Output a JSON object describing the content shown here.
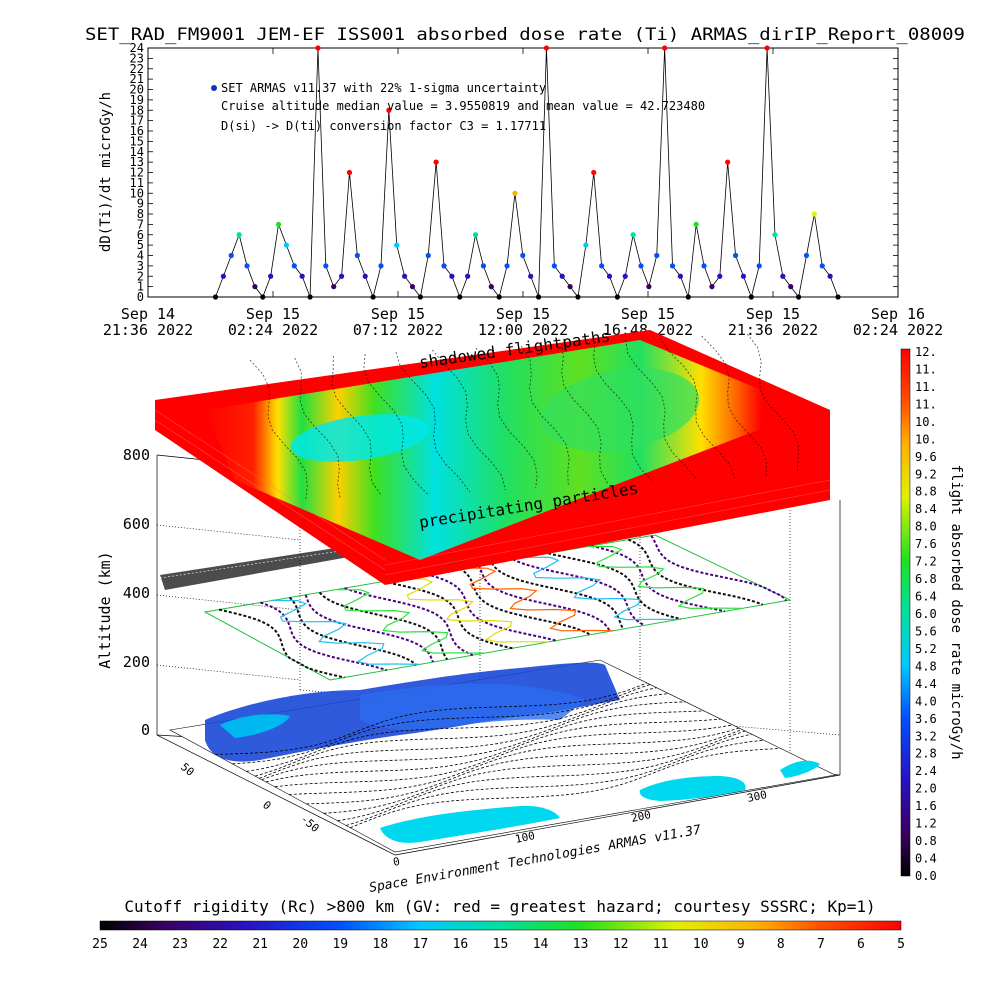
{
  "title": "SET_RAD_FM9001  JEM-EF ISS001 absorbed dose rate (Ti) ARMAS_dirIP_Report_08009",
  "chart_data": [
    {
      "type": "scatter",
      "ylabel": "dD(Ti)/dt microGy/h",
      "ylim": [
        0,
        24
      ],
      "yticks": [
        "0",
        "1",
        "2",
        "3",
        "4",
        "5",
        "6",
        "7",
        "8",
        "9",
        "10",
        "11",
        "12",
        "13",
        "14",
        "15",
        "16",
        "17",
        "18",
        "19",
        "20",
        "21",
        "22",
        "23",
        "24"
      ],
      "xticks": [
        {
          "line1": "Sep 14",
          "line2": "21:36 2022"
        },
        {
          "line1": "Sep 15",
          "line2": "02:24 2022"
        },
        {
          "line1": "Sep 15",
          "line2": "07:12 2022"
        },
        {
          "line1": "Sep 15",
          "line2": "12:00 2022"
        },
        {
          "line1": "Sep 15",
          "line2": "16:48 2022"
        },
        {
          "line1": "Sep 15",
          "line2": "21:36 2022"
        },
        {
          "line1": "Sep 16",
          "line2": "02:24 2022"
        }
      ],
      "annotations": [
        "SET ARMAS v11.37 with 22% 1-sigma uncertainty",
        "Cruise altitude median value = 3.9550819 and mean value = 42.723480",
        "D(si) -> D(ti) conversion factor C3 = 1.17711"
      ],
      "series": [
        {
          "name": "SET ARMAS v11.37",
          "x_range": [
            "Sep 14 23:55 2022",
            "Sep 15 23:30 2022"
          ],
          "note": "dose rate samples mostly between 0 and 8 microGy/h with spikes reaching 24",
          "values_sampled": [
            0,
            2,
            4,
            6,
            3,
            1,
            0,
            2,
            7,
            5,
            3,
            2,
            0,
            24,
            3,
            1,
            2,
            12,
            4,
            2,
            0,
            3,
            18,
            5,
            2,
            1,
            0,
            4,
            13,
            3,
            2,
            0,
            2,
            6,
            3,
            1,
            0,
            3,
            10,
            4,
            2,
            0,
            24,
            3,
            2,
            1,
            0,
            5,
            12,
            3,
            2,
            0,
            2,
            6,
            3,
            1,
            4,
            24,
            3,
            2,
            0,
            7,
            3,
            1,
            2,
            13,
            4,
            2,
            0,
            3,
            24,
            6,
            2,
            1,
            0,
            4,
            8,
            3,
            2,
            0
          ]
        }
      ]
    },
    {
      "type": "heatmap",
      "zlabel": "Altitude (km)",
      "zticks": [
        "0",
        "200",
        "400",
        "600",
        "800"
      ],
      "lon_ticks": [
        "0",
        "100",
        "200",
        "300"
      ],
      "lat_ticks": [
        "-50",
        "0",
        "50"
      ],
      "annotations": [
        "shadowed flightpaths",
        "precipitating particles"
      ],
      "footer": "Space Environment Technologies ARMAS v11.37"
    },
    {
      "type": "heatmap",
      "colorbar_label": "flight absorbed dose rate microGy/h",
      "colorbar_ticks": [
        "0.0",
        "0.4",
        "0.8",
        "1.2",
        "1.6",
        "2.0",
        "2.4",
        "2.8",
        "3.2",
        "3.6",
        "4.0",
        "4.4",
        "4.8",
        "5.2",
        "5.6",
        "6.0",
        "6.4",
        "6.8",
        "7.2",
        "7.6",
        "8.0",
        "8.4",
        "8.8",
        "9.2",
        "9.6",
        "10.",
        "10.",
        "11.",
        "11.",
        "11.",
        "12."
      ]
    },
    {
      "type": "heatmap",
      "colorbar_label": "Cutoff rigidity (Rc) >800 km (GV: red = greatest hazard; courtesy SSSRC; Kp=1)",
      "colorbar_ticks": [
        "25",
        "24",
        "23",
        "22",
        "21",
        "20",
        "19",
        "18",
        "17",
        "16",
        "15",
        "14",
        "13",
        "12",
        "11",
        "10",
        "9",
        "8",
        "7",
        "6",
        "5"
      ]
    }
  ]
}
